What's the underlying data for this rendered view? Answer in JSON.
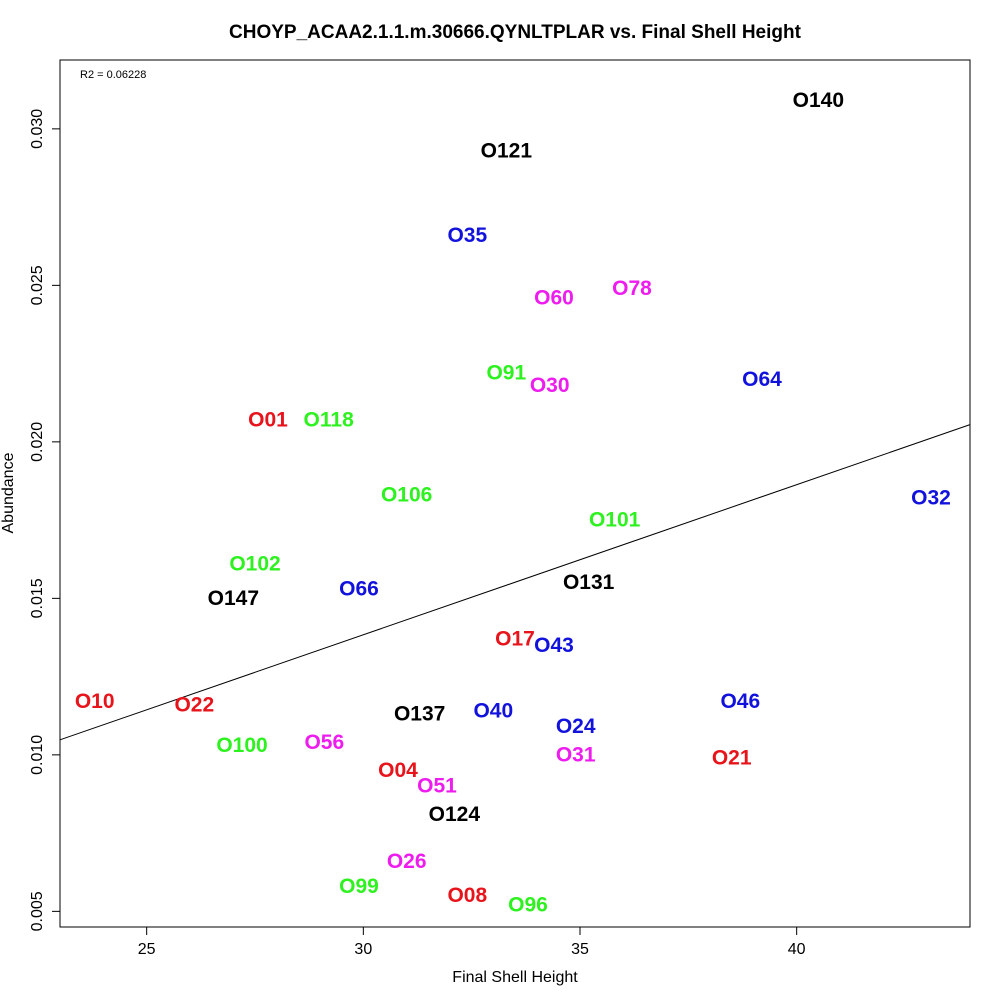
{
  "chart_data": {
    "type": "scatter",
    "title": "CHOYP_ACAA2.1.1.m.30666.QYNLTPLAR vs. Final Shell Height",
    "xlabel": "Final Shell Height",
    "ylabel": "Abundance",
    "xlim": [
      23.0,
      44.0
    ],
    "ylim": [
      0.0045,
      0.0322
    ],
    "x_ticks": [
      25,
      30,
      35,
      40
    ],
    "x_tick_labels": [
      "25",
      "30",
      "35",
      "40"
    ],
    "y_ticks": [
      0.005,
      0.01,
      0.015,
      0.02,
      0.025,
      0.03
    ],
    "y_tick_labels": [
      "0.005",
      "0.010",
      "0.015",
      "0.020",
      "0.025",
      "0.030"
    ],
    "grid": false,
    "annotation": "R2 = 0.06228",
    "regression_line": {
      "x": [
        23.0,
        44.0
      ],
      "y": [
        0.01048,
        0.02055
      ]
    },
    "colors": {
      "red": "#e8141b",
      "green": "#2ef21f",
      "blue": "#1212dd",
      "magenta": "#ee1cee",
      "black": "#000000"
    },
    "points": [
      {
        "label": "O140",
        "x": 40.5,
        "y": 0.0309,
        "color": "#000000"
      },
      {
        "label": "O121",
        "x": 33.3,
        "y": 0.0293,
        "color": "#000000"
      },
      {
        "label": "O35",
        "x": 32.4,
        "y": 0.0266,
        "color": "#1212dd"
      },
      {
        "label": "O78",
        "x": 36.2,
        "y": 0.0249,
        "color": "#ee1cee"
      },
      {
        "label": "O60",
        "x": 34.4,
        "y": 0.0246,
        "color": "#ee1cee"
      },
      {
        "label": "O91",
        "x": 33.3,
        "y": 0.0222,
        "color": "#2ef21f"
      },
      {
        "label": "O30",
        "x": 34.3,
        "y": 0.0218,
        "color": "#ee1cee"
      },
      {
        "label": "O64",
        "x": 39.2,
        "y": 0.022,
        "color": "#1212dd"
      },
      {
        "label": "O01",
        "x": 27.8,
        "y": 0.0207,
        "color": "#e8141b"
      },
      {
        "label": "O118",
        "x": 29.2,
        "y": 0.0207,
        "color": "#2ef21f"
      },
      {
        "label": "O106",
        "x": 31.0,
        "y": 0.0183,
        "color": "#2ef21f"
      },
      {
        "label": "O32",
        "x": 43.1,
        "y": 0.0182,
        "color": "#1212dd"
      },
      {
        "label": "O101",
        "x": 35.8,
        "y": 0.0175,
        "color": "#2ef21f"
      },
      {
        "label": "O102",
        "x": 27.5,
        "y": 0.0161,
        "color": "#2ef21f"
      },
      {
        "label": "O131",
        "x": 35.2,
        "y": 0.0155,
        "color": "#000000"
      },
      {
        "label": "O66",
        "x": 29.9,
        "y": 0.0153,
        "color": "#1212dd"
      },
      {
        "label": "O147",
        "x": 27.0,
        "y": 0.015,
        "color": "#000000"
      },
      {
        "label": "O17",
        "x": 33.5,
        "y": 0.0137,
        "color": "#e8141b"
      },
      {
        "label": "O43",
        "x": 34.4,
        "y": 0.0135,
        "color": "#1212dd"
      },
      {
        "label": "O10",
        "x": 23.8,
        "y": 0.0117,
        "color": "#e8141b"
      },
      {
        "label": "O46",
        "x": 38.7,
        "y": 0.0117,
        "color": "#1212dd"
      },
      {
        "label": "O22",
        "x": 26.1,
        "y": 0.0116,
        "color": "#e8141b"
      },
      {
        "label": "O137",
        "x": 31.3,
        "y": 0.0113,
        "color": "#000000"
      },
      {
        "label": "O40",
        "x": 33.0,
        "y": 0.0114,
        "color": "#1212dd"
      },
      {
        "label": "O24",
        "x": 34.9,
        "y": 0.0109,
        "color": "#1212dd"
      },
      {
        "label": "O56",
        "x": 29.1,
        "y": 0.0104,
        "color": "#ee1cee"
      },
      {
        "label": "O100",
        "x": 27.2,
        "y": 0.0103,
        "color": "#2ef21f"
      },
      {
        "label": "O31",
        "x": 34.9,
        "y": 0.01,
        "color": "#ee1cee"
      },
      {
        "label": "O21",
        "x": 38.5,
        "y": 0.0099,
        "color": "#e8141b"
      },
      {
        "label": "O04",
        "x": 30.8,
        "y": 0.0095,
        "color": "#e8141b"
      },
      {
        "label": "O51",
        "x": 31.7,
        "y": 0.009,
        "color": "#ee1cee"
      },
      {
        "label": "O124",
        "x": 32.1,
        "y": 0.0081,
        "color": "#000000"
      },
      {
        "label": "O26",
        "x": 31.0,
        "y": 0.0066,
        "color": "#ee1cee"
      },
      {
        "label": "O99",
        "x": 29.9,
        "y": 0.0058,
        "color": "#2ef21f"
      },
      {
        "label": "O08",
        "x": 32.4,
        "y": 0.0055,
        "color": "#e8141b"
      },
      {
        "label": "O96",
        "x": 33.8,
        "y": 0.0052,
        "color": "#2ef21f"
      }
    ]
  }
}
